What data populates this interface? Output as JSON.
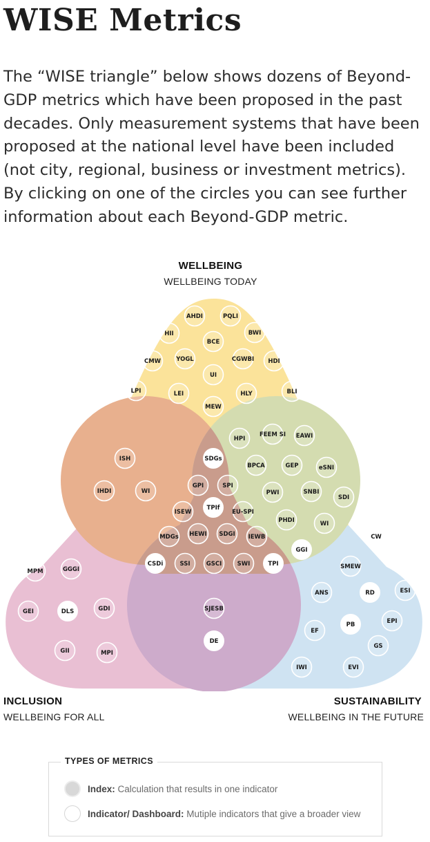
{
  "page": {
    "title": "WISE Metrics",
    "intro": "The “WISE triangle” below shows dozens of Beyond-GDP metrics which have been proposed in the past decades. Only measurement systems that have been proposed at the national level have been included (not city, regional, business or investment metrics). By clicking on one of the circles you can see further information about each Beyond-GDP metric."
  },
  "diagram": {
    "wellbeing": {
      "title": "WELLBEING",
      "subtitle": "WELLBEING TODAY"
    },
    "inclusion": {
      "title": "INCLUSION",
      "subtitle": "WELLBEING FOR ALL"
    },
    "sustainability": {
      "title": "SUSTAINABILITY",
      "subtitle": "WELLBEING IN THE FUTURE"
    },
    "colors": {
      "wellbeing": "#fbe39a",
      "inclusion": "#e9bfd3",
      "sustainability": "#cfe3f2",
      "wellbeing_inclusion": "#e8b08e",
      "wellbeing_sustainability": "#d4dcb0",
      "inclusion_sustainability": "#cdabcb",
      "all_three": "#c99c8c"
    },
    "metrics": [
      {
        "label": "AHDI",
        "type": "index"
      },
      {
        "label": "PQLI",
        "type": "index"
      },
      {
        "label": "HII",
        "type": "index"
      },
      {
        "label": "BWI",
        "type": "index"
      },
      {
        "label": "BCE",
        "type": "index"
      },
      {
        "label": "CMW",
        "type": "index"
      },
      {
        "label": "YOGL",
        "type": "index"
      },
      {
        "label": "CGWBI",
        "type": "index"
      },
      {
        "label": "HDI",
        "type": "index"
      },
      {
        "label": "UI",
        "type": "index"
      },
      {
        "label": "LPI",
        "type": "index"
      },
      {
        "label": "LEI",
        "type": "index"
      },
      {
        "label": "HLY",
        "type": "index"
      },
      {
        "label": "BLI",
        "type": "index"
      },
      {
        "label": "MEW",
        "type": "index"
      },
      {
        "label": "HPI",
        "type": "index"
      },
      {
        "label": "FEEM SI",
        "type": "index"
      },
      {
        "label": "EAWI",
        "type": "index"
      },
      {
        "label": "ISH",
        "type": "index"
      },
      {
        "label": "SDGs",
        "type": "dashboard"
      },
      {
        "label": "BPCA",
        "type": "index"
      },
      {
        "label": "GEP",
        "type": "index"
      },
      {
        "label": "eSNI",
        "type": "index"
      },
      {
        "label": "IHDI",
        "type": "index"
      },
      {
        "label": "WI",
        "type": "index"
      },
      {
        "label": "GPI",
        "type": "index"
      },
      {
        "label": "SPI",
        "type": "index"
      },
      {
        "label": "PWI",
        "type": "index"
      },
      {
        "label": "SNBI",
        "type": "index"
      },
      {
        "label": "SDI",
        "type": "index"
      },
      {
        "label": "TPIf",
        "type": "dashboard"
      },
      {
        "label": "ISEW",
        "type": "index"
      },
      {
        "label": "EU-SPI",
        "type": "index"
      },
      {
        "label": "PHDI",
        "type": "index"
      },
      {
        "label": "WI",
        "type": "index"
      },
      {
        "label": "CW",
        "type": "index"
      },
      {
        "label": "MDGs",
        "type": "index"
      },
      {
        "label": "HEWI",
        "type": "index"
      },
      {
        "label": "SDGI",
        "type": "index"
      },
      {
        "label": "IEWB",
        "type": "index"
      },
      {
        "label": "GGI",
        "type": "dashboard"
      },
      {
        "label": "CSDi",
        "type": "dashboard"
      },
      {
        "label": "SSI",
        "type": "index"
      },
      {
        "label": "GSCI",
        "type": "index"
      },
      {
        "label": "SWI",
        "type": "index"
      },
      {
        "label": "TPI",
        "type": "dashboard"
      },
      {
        "label": "SMEW",
        "type": "index"
      },
      {
        "label": "MPM",
        "type": "index"
      },
      {
        "label": "GGGI",
        "type": "index"
      },
      {
        "label": "ESI",
        "type": "index"
      },
      {
        "label": "ANS",
        "type": "index"
      },
      {
        "label": "RD",
        "type": "dashboard"
      },
      {
        "label": "GEI",
        "type": "index"
      },
      {
        "label": "DLS",
        "type": "dashboard"
      },
      {
        "label": "GDI",
        "type": "index"
      },
      {
        "label": "SJESB",
        "type": "index"
      },
      {
        "label": "EPI",
        "type": "index"
      },
      {
        "label": "PB",
        "type": "dashboard"
      },
      {
        "label": "EF",
        "type": "index"
      },
      {
        "label": "DE",
        "type": "dashboard"
      },
      {
        "label": "GS",
        "type": "index"
      },
      {
        "label": "GII",
        "type": "index"
      },
      {
        "label": "MPI",
        "type": "index"
      },
      {
        "label": "IWI",
        "type": "index"
      },
      {
        "label": "EVI",
        "type": "index"
      }
    ]
  },
  "legend": {
    "title": "TYPES OF METRICS",
    "index_label": "Index:",
    "index_desc": " Calculation that results in one indicator",
    "dashboard_label": "Indicator/ Dashboard:",
    "dashboard_desc": " Mutiple indicators that give a broader view"
  }
}
